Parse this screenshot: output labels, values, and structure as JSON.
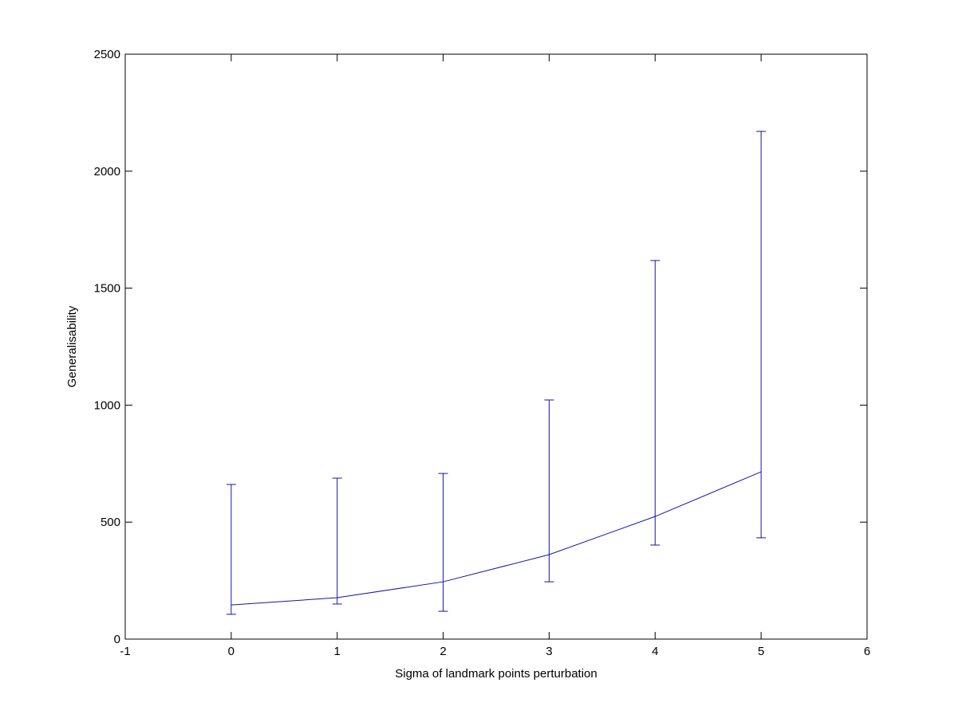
{
  "chart_data": {
    "type": "errorbar",
    "xlabel": "Sigma of landmark points perturbation",
    "ylabel": "Generalisability",
    "x": [
      0,
      1,
      2,
      3,
      4,
      5
    ],
    "values": [
      146,
      177,
      245,
      361,
      524,
      715
    ],
    "lower": [
      106,
      150,
      119,
      245,
      402,
      433
    ],
    "upper": [
      661,
      688,
      708,
      1022,
      1618,
      2170
    ],
    "color": "#1414a8",
    "xlim": [
      -1,
      6
    ],
    "xticks": [
      -1,
      0,
      1,
      2,
      3,
      4,
      5,
      6
    ],
    "ylim": [
      0,
      2500
    ],
    "yticks": [
      0,
      500,
      1000,
      1500,
      2000,
      2500
    ],
    "grid": false
  }
}
